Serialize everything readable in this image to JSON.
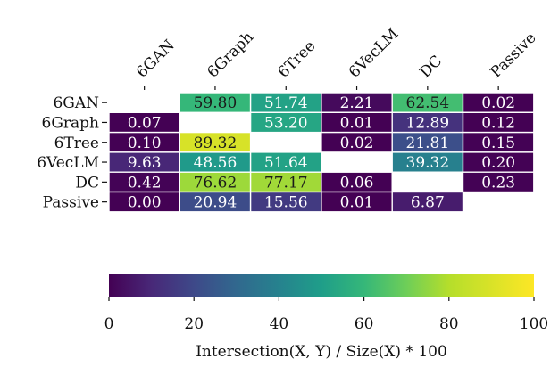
{
  "chart_data": {
    "type": "heatmap",
    "title": "",
    "rows": [
      "6GAN",
      "6Graph",
      "6Tree",
      "6VecLM",
      "DC",
      "Passive"
    ],
    "columns": [
      "6GAN",
      "6Graph",
      "6Tree",
      "6VecLM",
      "DC",
      "Passive"
    ],
    "values": [
      [
        null,
        59.8,
        51.74,
        2.21,
        62.54,
        0.02
      ],
      [
        0.07,
        null,
        53.2,
        0.01,
        12.89,
        0.12
      ],
      [
        0.1,
        89.32,
        null,
        0.02,
        21.81,
        0.15
      ],
      [
        9.63,
        48.56,
        51.64,
        null,
        39.32,
        0.2
      ],
      [
        0.42,
        76.62,
        77.17,
        0.06,
        null,
        0.23
      ],
      [
        0.0,
        20.94,
        15.56,
        0.01,
        6.87,
        null
      ]
    ],
    "value_format": "2 decimals",
    "colormap": "viridis",
    "colorbar": {
      "range": [
        0,
        100
      ],
      "ticks": [
        "0",
        "20",
        "40",
        "60",
        "80",
        "100"
      ],
      "label": "Intersection(X, Y) / Size(X) * 100",
      "placement": "bottom"
    },
    "x_axis_position": "top",
    "x_tick_rotation_deg": -45,
    "cell_border_color": "#ffffff"
  }
}
